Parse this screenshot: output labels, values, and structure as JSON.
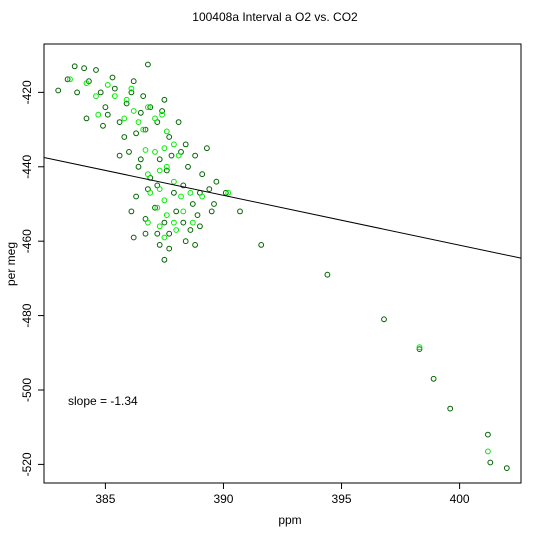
{
  "chart_data": {
    "type": "scatter",
    "title": "100408a   Interval a O2 vs. CO2",
    "xlabel": "ppm",
    "ylabel": "per meg",
    "xlim": [
      382.4,
      402.6
    ],
    "ylim": [
      -525,
      -407
    ],
    "xticks": [
      385,
      390,
      395,
      400
    ],
    "yticks": [
      -420,
      -440,
      -460,
      -480,
      -500,
      -520
    ],
    "annotation": "slope =  -1.34",
    "fit_line": {
      "slope": -1.34,
      "x0": 388.0,
      "y0": -445.0
    },
    "colors": {
      "series_a": "#006400",
      "series_b": "#00ee00",
      "fit": "#000000",
      "axes": "#000000"
    },
    "series": [
      {
        "marker": "open-circle",
        "color": "#006400",
        "points": [
          [
            383.0,
            -419.5
          ],
          [
            383.4,
            -416.5
          ],
          [
            383.7,
            -413.0
          ],
          [
            383.8,
            -420.0
          ],
          [
            384.1,
            -413.5
          ],
          [
            384.3,
            -417.0
          ],
          [
            384.6,
            -414.0
          ],
          [
            384.8,
            -420.0
          ],
          [
            385.0,
            -424.0
          ],
          [
            385.4,
            -419.0
          ],
          [
            385.1,
            -426.0
          ],
          [
            385.6,
            -428.0
          ],
          [
            385.9,
            -423.0
          ],
          [
            386.1,
            -420.0
          ],
          [
            386.5,
            -425.5
          ],
          [
            386.3,
            -431.0
          ],
          [
            385.8,
            -432.0
          ],
          [
            386.9,
            -424.0
          ],
          [
            387.2,
            -428.0
          ],
          [
            386.7,
            -430.0
          ],
          [
            387.5,
            -422.0
          ],
          [
            387.7,
            -432.0
          ],
          [
            386.2,
            -417.0
          ],
          [
            386.8,
            -412.5
          ],
          [
            385.3,
            -416.0
          ],
          [
            384.2,
            -427.0
          ],
          [
            384.9,
            -429.0
          ],
          [
            385.6,
            -437.0
          ],
          [
            386.0,
            -436.0
          ],
          [
            386.4,
            -440.0
          ],
          [
            386.9,
            -443.0
          ],
          [
            386.5,
            -438.0
          ],
          [
            387.3,
            -438.0
          ],
          [
            387.8,
            -437.0
          ],
          [
            387.6,
            -441.0
          ],
          [
            388.2,
            -436.0
          ],
          [
            388.5,
            -440.0
          ],
          [
            388.8,
            -437.0
          ],
          [
            389.1,
            -442.0
          ],
          [
            387.2,
            -445.0
          ],
          [
            387.9,
            -447.0
          ],
          [
            388.3,
            -445.0
          ],
          [
            388.7,
            -450.0
          ],
          [
            389.0,
            -447.0
          ],
          [
            389.4,
            -446.0
          ],
          [
            386.8,
            -446.0
          ],
          [
            386.3,
            -448.0
          ],
          [
            386.1,
            -452.0
          ],
          [
            386.7,
            -454.0
          ],
          [
            387.1,
            -451.0
          ],
          [
            387.5,
            -455.0
          ],
          [
            387.7,
            -458.0
          ],
          [
            388.0,
            -452.0
          ],
          [
            388.3,
            -455.0
          ],
          [
            388.6,
            -457.0
          ],
          [
            388.9,
            -453.0
          ],
          [
            387.2,
            -458.0
          ],
          [
            386.7,
            -458.0
          ],
          [
            386.2,
            -459.0
          ],
          [
            387.3,
            -461.0
          ],
          [
            387.7,
            -462.0
          ],
          [
            387.5,
            -465.0
          ],
          [
            388.4,
            -460.0
          ],
          [
            389.0,
            -456.0
          ],
          [
            388.8,
            -461.0
          ],
          [
            389.5,
            -452.0
          ],
          [
            389.7,
            -444.0
          ],
          [
            390.1,
            -447.0
          ],
          [
            389.3,
            -435.0
          ],
          [
            388.1,
            -428.0
          ],
          [
            387.4,
            -425.0
          ],
          [
            386.6,
            -421.0
          ],
          [
            388.4,
            -434.0
          ],
          [
            389.6,
            -450.0
          ],
          [
            390.7,
            -452.0
          ],
          [
            391.6,
            -461.0
          ],
          [
            394.4,
            -469.0
          ],
          [
            396.8,
            -481.0
          ],
          [
            398.3,
            -489.0
          ],
          [
            398.9,
            -497.0
          ],
          [
            399.6,
            -505.0
          ],
          [
            401.2,
            -512.0
          ],
          [
            401.3,
            -519.5
          ],
          [
            402.0,
            -521.0
          ]
        ]
      },
      {
        "marker": "open-circle",
        "color": "#00ee00",
        "points": [
          [
            383.5,
            -416.5
          ],
          [
            384.2,
            -417.5
          ],
          [
            384.6,
            -421.0
          ],
          [
            385.1,
            -418.0
          ],
          [
            385.4,
            -421.0
          ],
          [
            385.9,
            -422.0
          ],
          [
            386.2,
            -425.0
          ],
          [
            386.4,
            -428.0
          ],
          [
            386.8,
            -424.0
          ],
          [
            387.1,
            -427.0
          ],
          [
            387.4,
            -426.0
          ],
          [
            386.6,
            -430.0
          ],
          [
            385.8,
            -427.0
          ],
          [
            387.6,
            -430.5
          ],
          [
            386.1,
            -419.0
          ],
          [
            384.7,
            -426.0
          ],
          [
            386.7,
            -435.5
          ],
          [
            387.1,
            -436.0
          ],
          [
            387.5,
            -435.0
          ],
          [
            387.9,
            -434.0
          ],
          [
            388.1,
            -437.0
          ],
          [
            387.3,
            -441.0
          ],
          [
            386.8,
            -442.0
          ],
          [
            387.6,
            -440.0
          ],
          [
            387.9,
            -444.0
          ],
          [
            387.3,
            -446.0
          ],
          [
            388.2,
            -448.0
          ],
          [
            387.5,
            -449.0
          ],
          [
            388.6,
            -447.0
          ],
          [
            389.1,
            -448.0
          ],
          [
            386.9,
            -447.0
          ],
          [
            387.2,
            -451.0
          ],
          [
            387.6,
            -453.0
          ],
          [
            387.9,
            -455.0
          ],
          [
            387.3,
            -456.0
          ],
          [
            388.0,
            -457.0
          ],
          [
            387.5,
            -459.0
          ],
          [
            386.8,
            -455.0
          ],
          [
            388.3,
            -452.0
          ],
          [
            388.7,
            -455.0
          ],
          [
            390.2,
            -447.0
          ],
          [
            398.3,
            -488.5
          ],
          [
            401.2,
            -516.5
          ]
        ]
      }
    ]
  }
}
